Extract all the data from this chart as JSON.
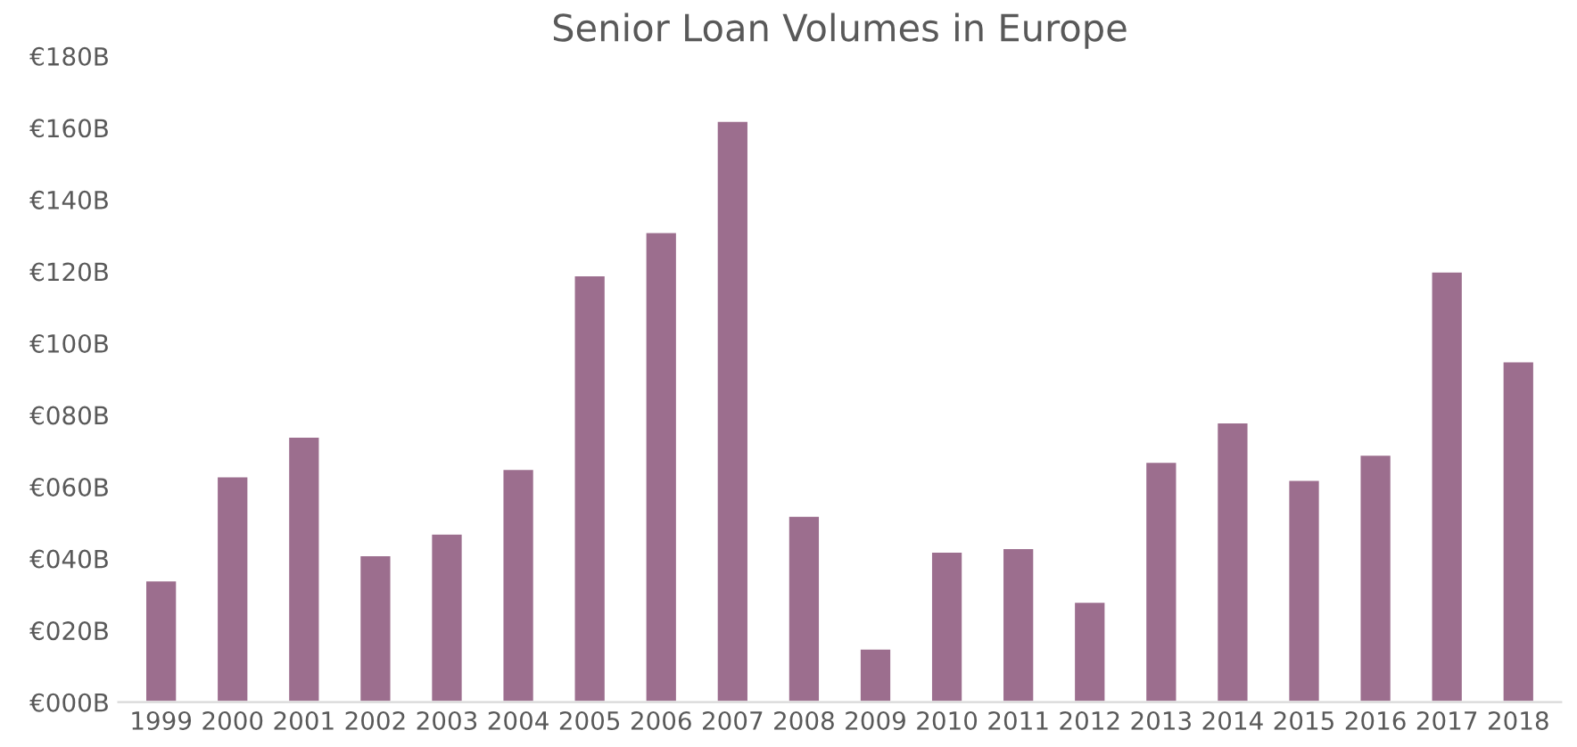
{
  "chart_data": {
    "type": "bar",
    "title": "Senior Loan Volumes in Europe",
    "categories": [
      "1999",
      "2000",
      "2001",
      "2002",
      "2003",
      "2004",
      "2005",
      "2006",
      "2007",
      "2008",
      "2009",
      "2010",
      "2011",
      "2012",
      "2013",
      "2014",
      "2015",
      "2016",
      "2017",
      "2018"
    ],
    "values": [
      34,
      63,
      74,
      41,
      47,
      65,
      119,
      131,
      162,
      52,
      15,
      42,
      43,
      28,
      67,
      78,
      62,
      69,
      120,
      95
    ],
    "color": "#9c6e8e",
    "ylim": [
      0,
      180
    ],
    "yticks": [
      {
        "value": 0,
        "label": "€000B"
      },
      {
        "value": 20,
        "label": "€020B"
      },
      {
        "value": 40,
        "label": "€040B"
      },
      {
        "value": 60,
        "label": "€060B"
      },
      {
        "value": 80,
        "label": "€080B"
      },
      {
        "value": 100,
        "label": "€100B"
      },
      {
        "value": 120,
        "label": "€120B"
      },
      {
        "value": 140,
        "label": "€140B"
      },
      {
        "value": 160,
        "label": "€160B"
      },
      {
        "value": 180,
        "label": "€180B"
      }
    ],
    "grid": false
  }
}
